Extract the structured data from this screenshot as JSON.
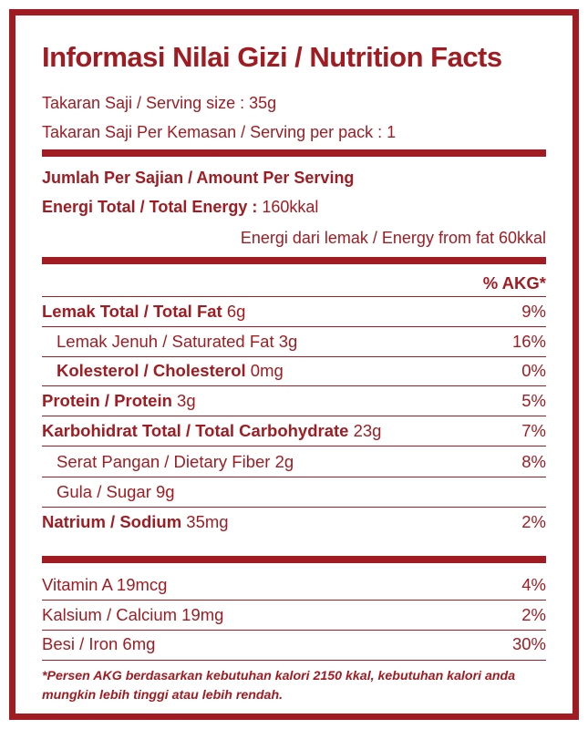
{
  "title": "Informasi Nilai Gizi / Nutrition Facts",
  "serving_size": "Takaran Saji / Serving size : 35g",
  "servings_per_pack": "Takaran Saji Per Kemasan / Serving per pack : 1",
  "amount_header": "Jumlah Per Sajian / Amount Per Serving",
  "energy": {
    "label": "Energi Total / Total Energy :",
    "value": " 160kkal"
  },
  "energy_fat": "Energi dari lemak / Energy from fat 60kkal",
  "akg_header": "% AKG*",
  "nutrients": [
    {
      "bold": "Lemak Total / Total Fat",
      "text": " 6g",
      "pct": "9%"
    },
    {
      "bold": "",
      "text": "Lemak Jenuh / Saturated Fat 3g",
      "pct": "16%"
    },
    {
      "bold": "Kolesterol / Cholesterol",
      "text": " 0mg",
      "pct": "0%"
    },
    {
      "bold": "Protein / Protein",
      "text": " 3g",
      "pct": "5%"
    },
    {
      "bold": "Karbohidrat Total / Total Carbohydrate",
      "text": " 23g",
      "pct": "7%"
    },
    {
      "bold": "",
      "text": "Serat Pangan / Dietary Fiber 2g",
      "pct": "8%"
    },
    {
      "bold": "",
      "text": "Gula / Sugar 9g",
      "pct": ""
    },
    {
      "bold": "Natrium / Sodium",
      "text": " 35mg",
      "pct": "2%"
    }
  ],
  "vitamins": [
    {
      "text": "Vitamin A 19mcg",
      "pct": "4%"
    },
    {
      "text": "Kalsium / Calcium 19mg",
      "pct": "2%"
    },
    {
      "text": "Besi / Iron 6mg",
      "pct": "30%"
    }
  ],
  "footnote": "*Persen AKG berdasarkan kebutuhan kalori 2150 kkal, kebutuhan kalori anda mungkin lebih tinggi atau lebih rendah.",
  "colors": {
    "accent": "#a01c22",
    "background": "#ffffff"
  }
}
